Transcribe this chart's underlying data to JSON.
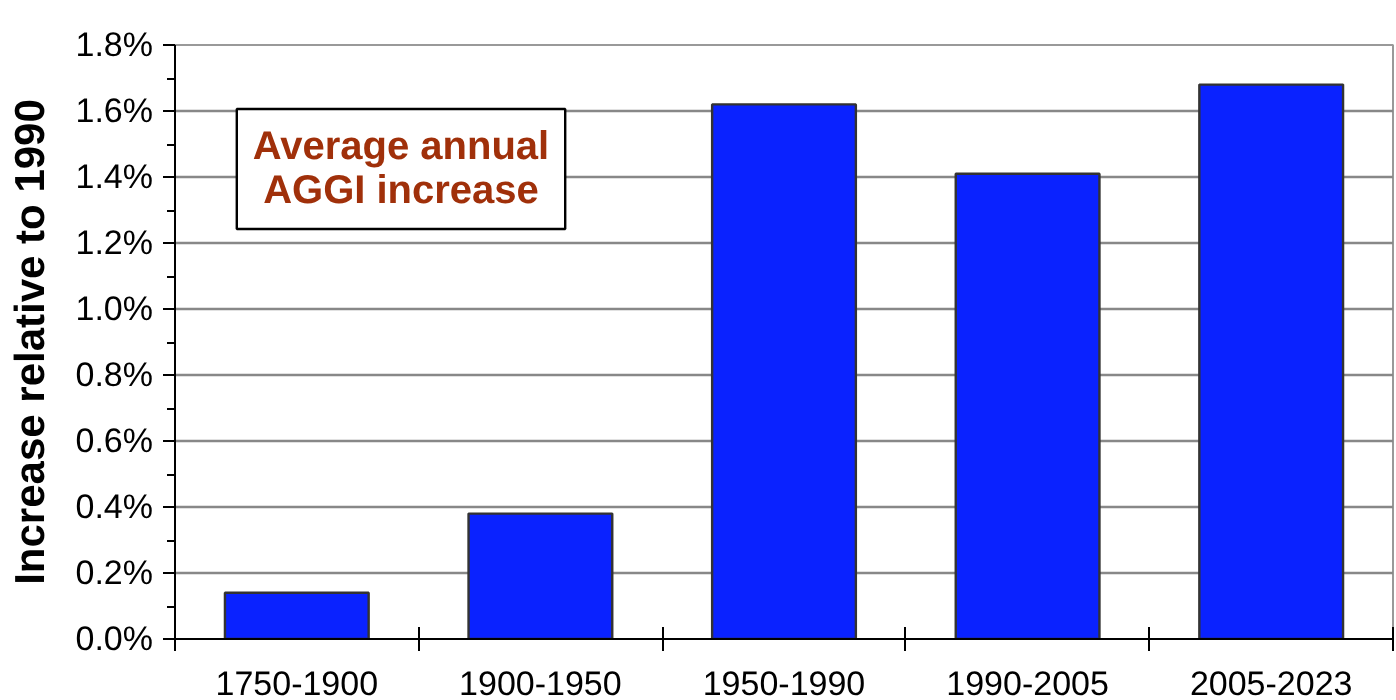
{
  "chart_data": {
    "type": "bar",
    "ylabel": "Increase relative to 1990",
    "categories": [
      "1750-1900",
      "1900-1950",
      "1950-1990",
      "1990-2005",
      "2005-2023"
    ],
    "values": [
      0.14,
      0.38,
      1.62,
      1.41,
      1.68
    ],
    "color": "#0a22ff",
    "ylim": [
      0,
      1.8
    ],
    "yticks": [
      {
        "value": 0,
        "label": "0.0%"
      },
      {
        "value": 0.2,
        "label": "0.2%"
      },
      {
        "value": 0.4,
        "label": "0.4%"
      },
      {
        "value": 0.6,
        "label": "0.6%"
      },
      {
        "value": 0.8,
        "label": "0.8%"
      },
      {
        "value": 1.0,
        "label": "1.0%"
      },
      {
        "value": 1.2,
        "label": "1.2%"
      },
      {
        "value": 1.4,
        "label": "1.4%"
      },
      {
        "value": 1.6,
        "label": "1.6%"
      },
      {
        "value": 1.8,
        "label": "1.8%"
      }
    ],
    "grid": "y",
    "annotations": [
      "Average annual\nAGGI increase"
    ]
  }
}
